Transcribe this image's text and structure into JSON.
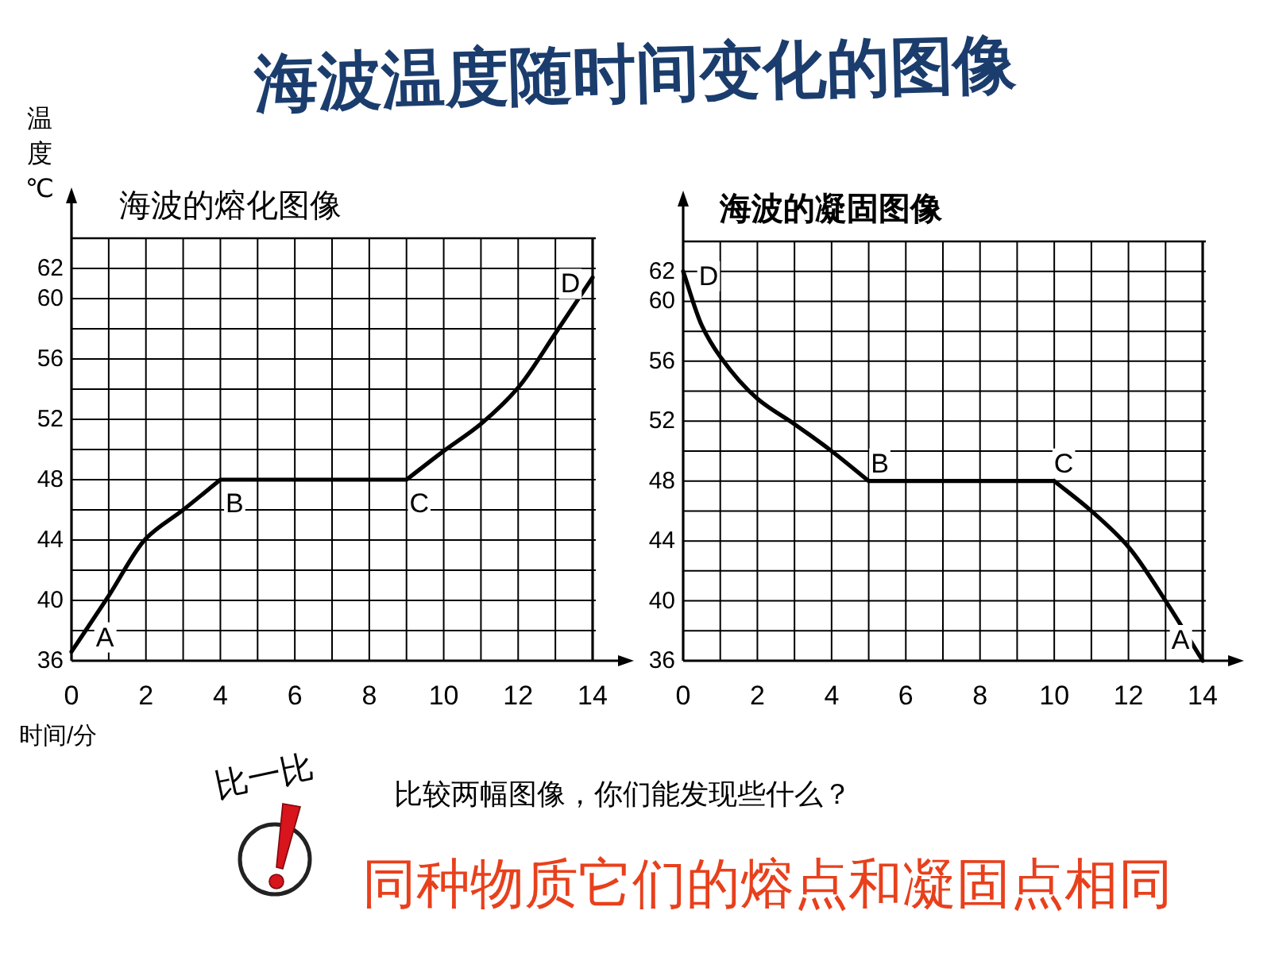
{
  "chart_data": [
    {
      "type": "other",
      "title": "海波温度随时间变化的图像"
    },
    {
      "type": "line",
      "title": "海波的熔化图像",
      "ylabel": "温度℃",
      "xlabel": "时间/分",
      "xlim": [
        0,
        14
      ],
      "xticks": [
        0,
        {
          "value": 1,
          "label": null
        },
        2,
        {
          "value": 3,
          "label": null
        },
        4,
        {
          "value": 5,
          "label": null
        },
        6,
        {
          "value": 7,
          "label": null
        },
        8,
        {
          "value": 9,
          "label": null
        },
        10,
        {
          "value": 11,
          "label": null
        },
        12,
        {
          "value": 13,
          "label": null
        },
        14
      ],
      "ylim": [
        36,
        64
      ],
      "yticks": [
        36,
        {
          "value": 38,
          "label": null
        },
        40,
        {
          "value": 42,
          "label": null
        },
        44,
        {
          "value": 46,
          "label": null
        },
        48,
        {
          "value": 50,
          "label": null
        },
        52,
        {
          "value": 54,
          "label": null
        },
        56,
        {
          "value": 58,
          "label": null
        },
        60,
        62
      ],
      "grid": true,
      "line_style": "solid",
      "series": [
        {
          "color": "#000000",
          "x": [
            0,
            1,
            2,
            3,
            4,
            9,
            10,
            11,
            12,
            13,
            14
          ],
          "values": [
            36.6,
            40.3,
            44.1,
            46,
            48,
            48,
            49.9,
            51.7,
            54.1,
            57.7,
            61.4
          ]
        }
      ],
      "annotations": [
        {
          "text": "A",
          "x": 0,
          "y": 36.6
        },
        {
          "text": "B",
          "x": 4,
          "y": 48
        },
        {
          "text": "C",
          "x": 9,
          "y": 48
        },
        {
          "text": "D",
          "x": 14,
          "y": 61.4
        }
      ]
    },
    {
      "type": "line",
      "title": "海波的凝固图像",
      "xlim": [
        0,
        14
      ],
      "xticks": [
        0,
        {
          "value": 1,
          "label": null
        },
        2,
        {
          "value": 3,
          "label": null
        },
        4,
        {
          "value": 5,
          "label": null
        },
        6,
        {
          "value": 7,
          "label": null
        },
        8,
        {
          "value": 9,
          "label": null
        },
        10,
        {
          "value": 11,
          "label": null
        },
        12,
        {
          "value": 13,
          "label": null
        },
        14
      ],
      "ylim": [
        36,
        64
      ],
      "yticks": [
        36,
        {
          "value": 38,
          "label": null
        },
        40,
        {
          "value": 42,
          "label": null
        },
        44,
        {
          "value": 46,
          "label": null
        },
        48,
        {
          "value": 50,
          "label": null
        },
        52,
        {
          "value": 54,
          "label": null
        },
        56,
        {
          "value": 58,
          "label": null
        },
        60,
        62
      ],
      "grid": true,
      "line_style": "solid",
      "series": [
        {
          "color": "#000000",
          "x": [
            0,
            0.5,
            1,
            2,
            3,
            4,
            5,
            10,
            11,
            12,
            13,
            14
          ],
          "values": [
            62,
            58.4,
            56.3,
            53.5,
            51.8,
            50,
            48,
            48,
            46,
            43.6,
            40,
            36
          ]
        }
      ],
      "annotations": [
        {
          "text": "D",
          "x": 0,
          "y": 62
        },
        {
          "text": "B",
          "x": 5,
          "y": 48
        },
        {
          "text": "C",
          "x": 10,
          "y": 48
        },
        {
          "text": "A",
          "x": 14,
          "y": 36
        }
      ]
    },
    {
      "type": "other",
      "annotations": [
        "比一比",
        "比较两幅图像，你们能发现些什么？",
        "同种物质它们的熔点和凝固点相同"
      ]
    }
  ]
}
